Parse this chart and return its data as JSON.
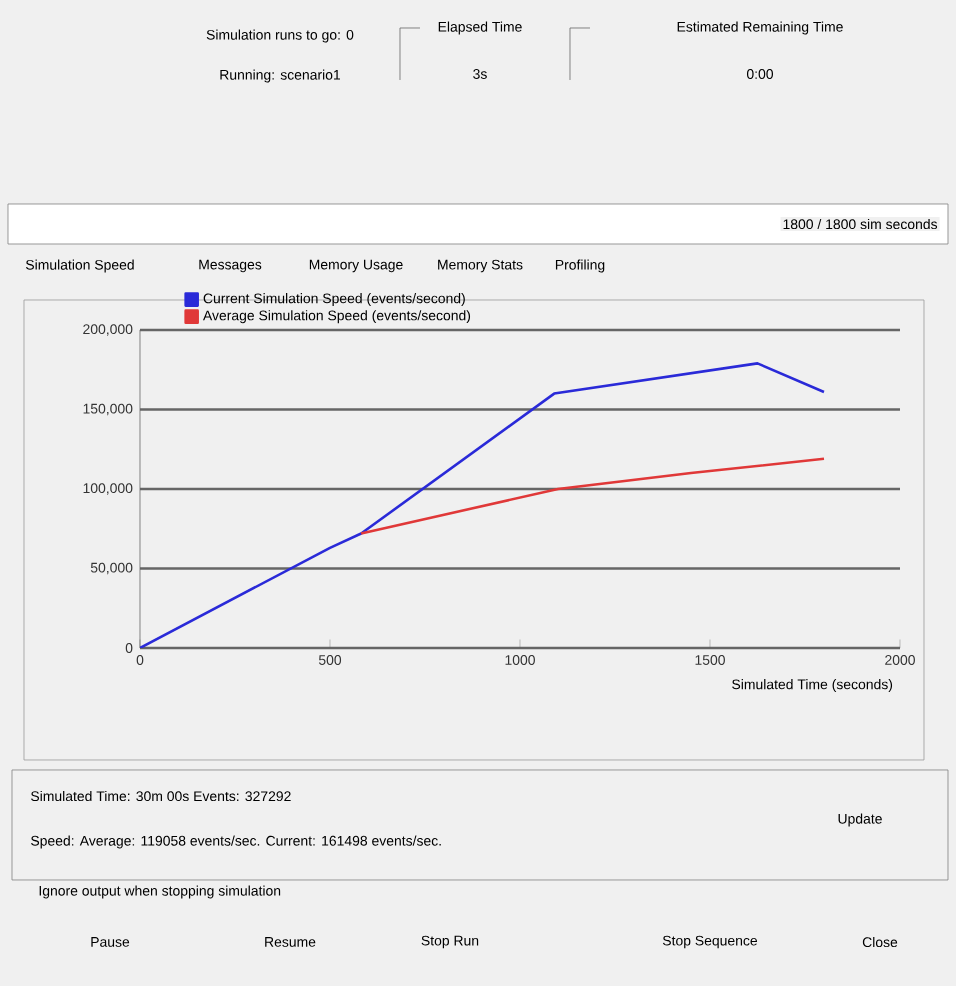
{
  "chart_data": {
    "type": "line",
    "xlabel": "Simulated Time (seconds)",
    "xlim": [
      0,
      2000
    ],
    "xticks": [
      0,
      500,
      1000,
      1500,
      2000
    ],
    "ylim": [
      0,
      200000
    ],
    "yticks": [
      0,
      {
        "value": 50000,
        "label": "50,000"
      },
      {
        "value": 100000,
        "label": "100,000"
      },
      {
        "value": 150000,
        "label": "150,000"
      },
      {
        "value": 200000,
        "label": "200,000"
      }
    ],
    "grid": "y",
    "legend": "top",
    "marker": "none",
    "line_style": "solid",
    "series": [
      {
        "name": "Current Simulation Speed (events/second)",
        "color": "#2a2ad8",
        "x": [
          0,
          500,
          582,
          1090,
          1625,
          1800
        ],
        "values": [
          0,
          63000,
          72000,
          160000,
          179000,
          161000
        ]
      },
      {
        "name": "Average Simulation Speed (events/second)",
        "color": "#e03838",
        "x": [
          582,
          1100,
          1450,
          1800
        ],
        "values": [
          72000,
          100000,
          110000,
          119000
        ]
      }
    ],
    "annotations": [
      "Simulation runs to go: 0",
      "Running: scenario1",
      "Elapsed Time",
      "3s",
      "Estimated Remaining Time",
      "0:00",
      "1800 / 1800 sim seconds",
      "Simulation Speed",
      "Messages",
      "Memory Usage",
      "Memory Stats",
      "Profiling",
      "Simulated Time: 30m 00s  Events: 327292",
      "Speed: Average: 119058 events/sec. Current: 161498 events/sec.",
      "Update",
      "Ignore output when stopping simulation",
      "Pause",
      "Resume",
      "Stop Run",
      "Stop Sequence",
      "Close"
    ]
  }
}
